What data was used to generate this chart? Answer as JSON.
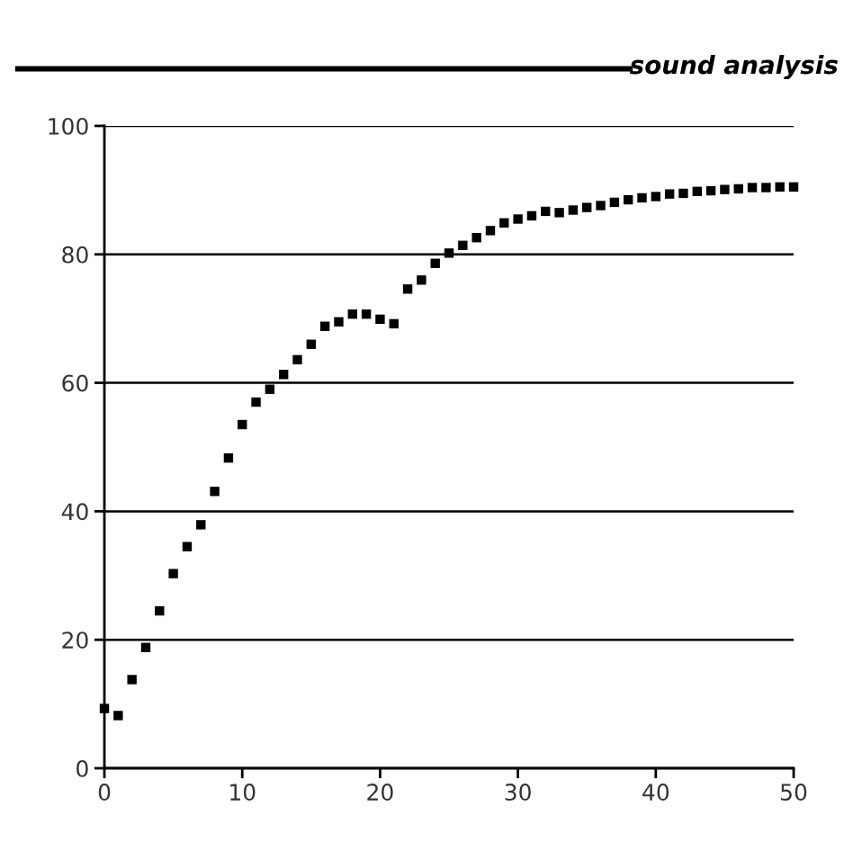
{
  "chart_data": {
    "type": "scatter",
    "title": "sound analysis",
    "x": [
      0,
      1,
      2,
      3,
      4,
      5,
      6,
      7,
      8,
      9,
      10,
      11,
      12,
      13,
      14,
      15,
      16,
      17,
      18,
      19,
      20,
      21,
      22,
      23,
      24,
      25,
      26,
      27,
      28,
      29,
      30,
      31,
      32,
      33,
      34,
      35,
      36,
      37,
      38,
      39,
      40,
      41,
      42,
      43,
      44,
      45,
      46,
      47,
      48,
      49,
      50
    ],
    "values": [
      9.3,
      8.2,
      13.8,
      18.8,
      24.5,
      30.3,
      34.5,
      37.9,
      43.1,
      48.3,
      53.5,
      57.0,
      59.0,
      61.3,
      63.6,
      66.0,
      68.8,
      69.5,
      70.7,
      70.7,
      69.9,
      69.2,
      74.6,
      76.0,
      78.6,
      80.2,
      81.4,
      82.6,
      83.7,
      84.9,
      85.5,
      86.0,
      86.7,
      86.5,
      86.9,
      87.3,
      87.6,
      88.1,
      88.5,
      88.8,
      89.0,
      89.4,
      89.5,
      89.8,
      89.9,
      90.1,
      90.2,
      90.4,
      90.4,
      90.5,
      90.5
    ],
    "color": "#000000",
    "marker": "square",
    "xlim": [
      0,
      50
    ],
    "ylim": [
      0,
      100
    ],
    "xticks": [
      0,
      10,
      20,
      30,
      40,
      50
    ],
    "yticks": [
      0,
      20,
      40,
      60,
      80,
      100
    ],
    "grid": "y"
  }
}
